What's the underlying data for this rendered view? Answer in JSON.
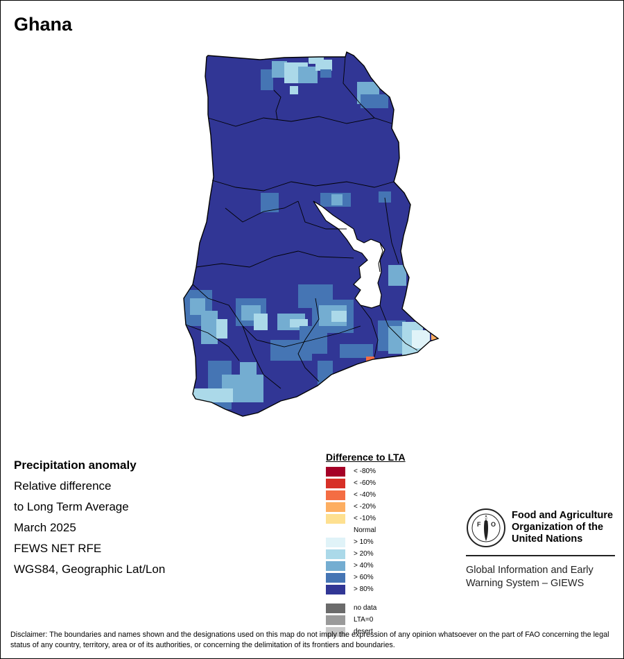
{
  "map_title": "Ghana",
  "info_lines": {
    "heading": "Precipitation anomaly",
    "line1": "Relative difference",
    "line2": "to Long Term Average",
    "line3": "March 2025",
    "line4": "FEWS NET RFE",
    "line5": "WGS84, Geographic Lat/Lon"
  },
  "legend": {
    "title": "Difference to LTA",
    "classes": [
      {
        "label": "< -80%",
        "color": "#a50026"
      },
      {
        "label": "< -60%",
        "color": "#d73027"
      },
      {
        "label": "< -40%",
        "color": "#f46d43"
      },
      {
        "label": "< -20%",
        "color": "#fdae61"
      },
      {
        "label": "< -10%",
        "color": "#fee090"
      },
      {
        "label": "Normal",
        "color": "#ffffff"
      },
      {
        "label": "> 10%",
        "color": "#e0f3f8"
      },
      {
        "label": "> 20%",
        "color": "#abd9e9"
      },
      {
        "label": "> 40%",
        "color": "#74add1"
      },
      {
        "label": "> 60%",
        "color": "#4575b4"
      },
      {
        "label": "> 80%",
        "color": "#313695"
      }
    ],
    "special": [
      {
        "label": "no data",
        "color": "#6b6b6b"
      },
      {
        "label": "LTA=0",
        "color": "#9a9a9a"
      },
      {
        "label": "desert",
        "color": "#c8c8c8"
      }
    ]
  },
  "fao": {
    "logo_text_top": "FAO",
    "logo_text_bottom": "FIAT PANIS",
    "name_line1": "Food and Agriculture",
    "name_line2": "Organization of the",
    "name_line3": "United Nations",
    "giews_line1": "Global Information and Early",
    "giews_line2": "Warning System – GIEWS"
  },
  "disclaimer": "Disclaimer: The boundaries and names shown and the designations used on this map do not imply the expression of any opinion whatsoever on the part of FAO concerning the legal status of any country, territory, area or of its authorities, or concerning the delimitation of its frontiers and boundaries.",
  "map_colors": {
    "dominant": "#313695",
    "boundary": "#000000",
    "lake": "#ffffff"
  }
}
